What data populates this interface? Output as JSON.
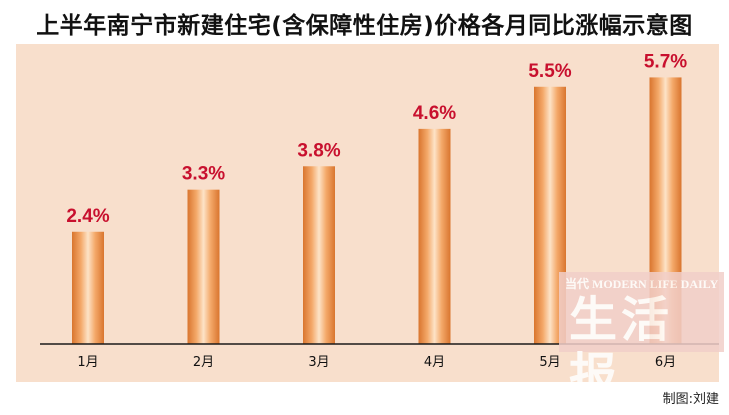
{
  "chart_data": {
    "type": "bar",
    "title": "上半年南宁市新建住宅(含保障性住房)价格各月同比涨幅示意图",
    "categories": [
      "1月",
      "2月",
      "3月",
      "4月",
      "5月",
      "6月"
    ],
    "values": [
      2.4,
      3.3,
      3.8,
      4.6,
      5.5,
      5.7
    ],
    "value_labels": [
      "2.4%",
      "3.3%",
      "3.8%",
      "4.6%",
      "5.5%",
      "5.7%"
    ],
    "ylim": [
      0,
      6.5
    ],
    "xlabel": "",
    "ylabel": "",
    "grid": false,
    "colors": {
      "bar_light": "#fde3c7",
      "bar_mid": "#f4a96a",
      "bar_dark": "#d9752e",
      "label": "#c8102e",
      "panel": "#f8dfcc"
    }
  },
  "credit": "制图:刘建",
  "watermark": {
    "top": "当代 MODERN LIFE DAILY",
    "main": "生活报"
  }
}
